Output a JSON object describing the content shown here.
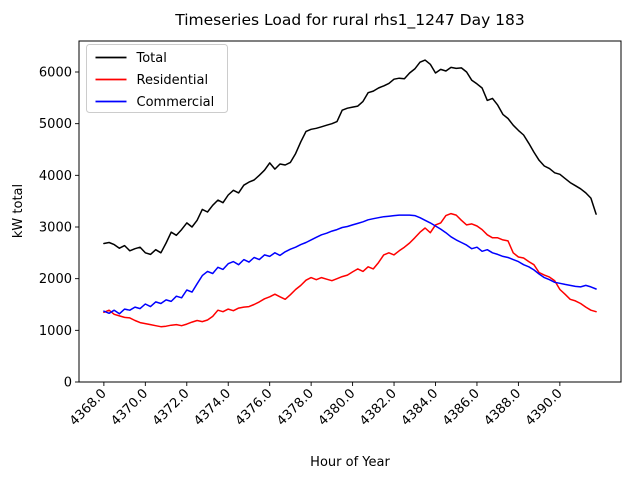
{
  "chart_data": {
    "type": "line",
    "title": "Timeseries Load for rural rhs1_1247  Day 183",
    "xlabel": "Hour of Year",
    "ylabel": "kW total",
    "xlim": [
      4366.8,
      4392.95
    ],
    "ylim": [
      0,
      6600
    ],
    "grid": false,
    "legend_position": "upper left",
    "legend_entries": [
      "Total",
      "Residential",
      "Commercial"
    ],
    "xticks": [
      4368,
      4370,
      4372,
      4374,
      4376,
      4378,
      4380,
      4382,
      4384,
      4386,
      4388,
      4390
    ],
    "xtick_labels": [
      "4368.0",
      "4370.0",
      "4372.0",
      "4374.0",
      "4376.0",
      "4378.0",
      "4380.0",
      "4382.0",
      "4384.0",
      "4386.0",
      "4388.0",
      "4390.0"
    ],
    "yticks": [
      0,
      1000,
      2000,
      3000,
      4000,
      5000,
      6000
    ],
    "ytick_labels": [
      "0",
      "1000",
      "2000",
      "3000",
      "4000",
      "5000",
      "6000"
    ],
    "x": [
      4368.0,
      4368.25,
      4368.5,
      4368.75,
      4369.0,
      4369.25,
      4369.5,
      4369.75,
      4370.0,
      4370.25,
      4370.5,
      4370.75,
      4371.0,
      4371.25,
      4371.5,
      4371.75,
      4372.0,
      4372.25,
      4372.5,
      4372.75,
      4373.0,
      4373.25,
      4373.5,
      4373.75,
      4374.0,
      4374.25,
      4374.5,
      4374.75,
      4375.0,
      4375.25,
      4375.5,
      4375.75,
      4376.0,
      4376.25,
      4376.5,
      4376.75,
      4377.0,
      4377.25,
      4377.5,
      4377.75,
      4378.0,
      4378.25,
      4378.5,
      4378.75,
      4379.0,
      4379.25,
      4379.5,
      4379.75,
      4380.0,
      4380.25,
      4380.5,
      4380.75,
      4381.0,
      4381.25,
      4381.5,
      4381.75,
      4382.0,
      4382.25,
      4382.5,
      4382.75,
      4383.0,
      4383.25,
      4383.5,
      4383.75,
      4384.0,
      4384.25,
      4384.5,
      4384.75,
      4385.0,
      4385.25,
      4385.5,
      4385.75,
      4386.0,
      4386.25,
      4386.5,
      4386.75,
      4387.0,
      4387.25,
      4387.5,
      4387.75,
      4388.0,
      4388.25,
      4388.5,
      4388.75,
      4389.0,
      4389.25,
      4389.5,
      4389.75,
      4390.0,
      4390.25,
      4390.5,
      4390.75,
      4391.0,
      4391.25,
      4391.5,
      4391.75
    ],
    "series": [
      {
        "name": "Total",
        "color": "#000000",
        "values": [
          2680,
          2700,
          2660,
          2590,
          2640,
          2540,
          2580,
          2610,
          2500,
          2470,
          2560,
          2500,
          2690,
          2900,
          2840,
          2950,
          3080,
          3000,
          3130,
          3340,
          3290,
          3420,
          3520,
          3470,
          3620,
          3710,
          3660,
          3810,
          3870,
          3910,
          4000,
          4100,
          4240,
          4120,
          4220,
          4200,
          4250,
          4420,
          4650,
          4850,
          4890,
          4910,
          4940,
          4970,
          5000,
          5040,
          5260,
          5300,
          5320,
          5340,
          5430,
          5600,
          5630,
          5690,
          5730,
          5780,
          5860,
          5880,
          5870,
          5980,
          6060,
          6190,
          6230,
          6150,
          5980,
          6050,
          6020,
          6090,
          6070,
          6080,
          6000,
          5840,
          5770,
          5690,
          5450,
          5490,
          5360,
          5180,
          5100,
          4970,
          4870,
          4780,
          4620,
          4450,
          4290,
          4180,
          4130,
          4050,
          4020,
          3940,
          3860,
          3800,
          3740,
          3660,
          3560,
          3250
        ]
      },
      {
        "name": "Residential",
        "color": "#ff0000",
        "values": [
          1350,
          1390,
          1310,
          1280,
          1250,
          1240,
          1190,
          1150,
          1130,
          1110,
          1090,
          1070,
          1080,
          1100,
          1110,
          1090,
          1120,
          1160,
          1190,
          1170,
          1200,
          1270,
          1390,
          1360,
          1410,
          1380,
          1430,
          1450,
          1460,
          1500,
          1550,
          1610,
          1650,
          1700,
          1650,
          1600,
          1690,
          1790,
          1870,
          1970,
          2020,
          1980,
          2020,
          1990,
          1960,
          2000,
          2040,
          2070,
          2130,
          2190,
          2140,
          2230,
          2190,
          2310,
          2460,
          2500,
          2460,
          2540,
          2610,
          2690,
          2790,
          2900,
          2980,
          2890,
          3040,
          3080,
          3220,
          3260,
          3230,
          3130,
          3040,
          3060,
          3020,
          2950,
          2850,
          2790,
          2790,
          2750,
          2730,
          2500,
          2420,
          2400,
          2330,
          2270,
          2120,
          2070,
          2030,
          1960,
          1790,
          1700,
          1600,
          1570,
          1520,
          1450,
          1390,
          1360
        ]
      },
      {
        "name": "Commercial",
        "color": "#0000ff",
        "values": [
          1370,
          1330,
          1390,
          1320,
          1410,
          1390,
          1450,
          1420,
          1510,
          1460,
          1550,
          1520,
          1590,
          1560,
          1660,
          1630,
          1780,
          1740,
          1900,
          2060,
          2140,
          2100,
          2220,
          2180,
          2290,
          2330,
          2270,
          2370,
          2320,
          2410,
          2370,
          2460,
          2430,
          2500,
          2450,
          2520,
          2570,
          2610,
          2660,
          2700,
          2750,
          2800,
          2850,
          2880,
          2920,
          2950,
          2990,
          3010,
          3040,
          3070,
          3100,
          3140,
          3160,
          3180,
          3200,
          3210,
          3220,
          3230,
          3230,
          3230,
          3220,
          3180,
          3130,
          3080,
          3020,
          2960,
          2890,
          2810,
          2750,
          2700,
          2650,
          2580,
          2610,
          2530,
          2560,
          2500,
          2470,
          2430,
          2410,
          2370,
          2330,
          2270,
          2230,
          2170,
          2090,
          2020,
          1980,
          1930,
          1910,
          1890,
          1870,
          1850,
          1840,
          1870,
          1840,
          1800
        ]
      }
    ]
  }
}
